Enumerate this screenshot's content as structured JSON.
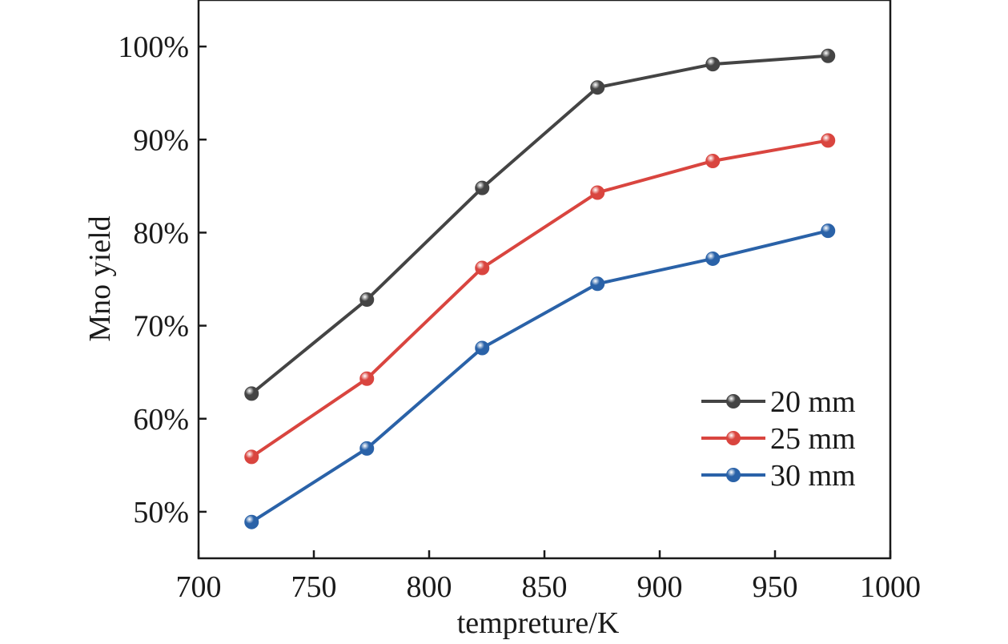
{
  "chart_data": {
    "type": "line",
    "title": "",
    "xlabel": "tempreture/K",
    "ylabel": "Mno yield",
    "xlim": [
      700,
      1000
    ],
    "ylim": [
      0.45,
      1.05
    ],
    "x_ticks": [
      700,
      750,
      800,
      850,
      900,
      950,
      1000
    ],
    "x_tick_labels": [
      "700",
      "750",
      "800",
      "850",
      "900",
      "950",
      "1000"
    ],
    "y_ticks": [
      0.5,
      0.6,
      0.7,
      0.8,
      0.9,
      1.0
    ],
    "y_tick_labels": [
      "50%",
      "60%",
      "70%",
      "80%",
      "90%",
      "100%"
    ],
    "grid": false,
    "legend_position": "bottom-right",
    "x": [
      723,
      773,
      823,
      873,
      923,
      973
    ],
    "series": [
      {
        "name": "20 mm",
        "color": "#444444",
        "values": [
          0.627,
          0.728,
          0.848,
          0.956,
          0.981,
          0.99
        ]
      },
      {
        "name": "25 mm",
        "color": "#d9453f",
        "values": [
          0.559,
          0.643,
          0.762,
          0.843,
          0.877,
          0.899
        ]
      },
      {
        "name": "30 mm",
        "color": "#2a62a8",
        "values": [
          0.489,
          0.568,
          0.676,
          0.745,
          0.772,
          0.802
        ]
      }
    ]
  }
}
